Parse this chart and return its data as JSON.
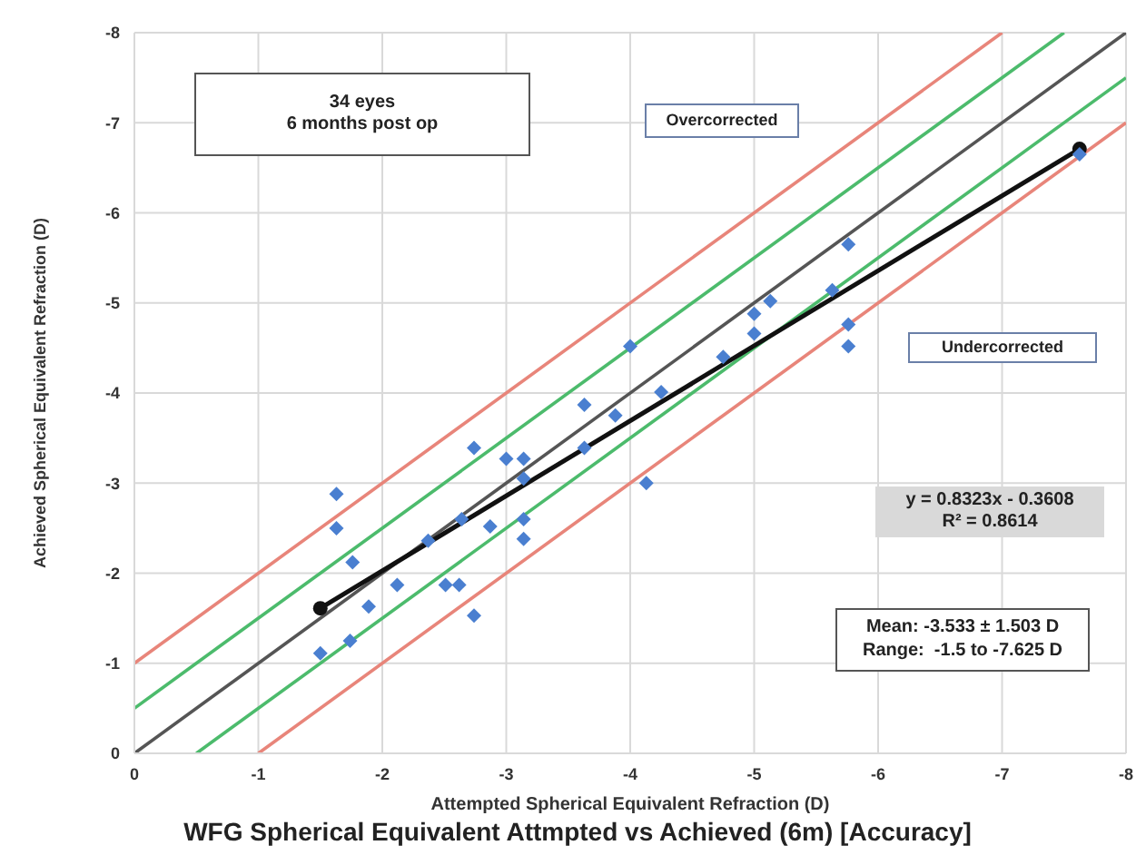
{
  "chart_data": {
    "type": "scatter",
    "title": "WFG Spherical Equivalent Attmpted vs Achieved (6m) [Accuracy]",
    "xlabel": "Attempted Spherical  Equivalent Refraction (D)",
    "ylabel": "Achieved Spherical Equivalent Refraction (D)",
    "xlim": [
      0,
      -8
    ],
    "ylim": [
      0,
      -8
    ],
    "xticks": [
      0,
      -1,
      -2,
      -3,
      -4,
      -5,
      -6,
      -7,
      -8
    ],
    "yticks": [
      0,
      -1,
      -2,
      -3,
      -4,
      -5,
      -6,
      -7,
      -8
    ],
    "grid": true,
    "annotations": [
      "34 eyes",
      "6 months post op",
      "Overcorrected",
      "Undercorrected",
      "y = 0.8323x - 0.3608",
      "R² = 0.8614",
      "Mean: -3.533 ± 1.503 D",
      "Range:  -1.5 to -7.625 D"
    ],
    "series": [
      {
        "type": "line",
        "color": "#e8857a",
        "marker": "none",
        "x": [
          0,
          -7
        ],
        "values": [
          -1,
          -8
        ]
      },
      {
        "type": "line",
        "color": "#4cbb6c",
        "marker": "none",
        "x": [
          0,
          -7.5
        ],
        "values": [
          -0.5,
          -8
        ]
      },
      {
        "type": "line",
        "color": "#555555",
        "marker": "none",
        "x": [
          0,
          -8
        ],
        "values": [
          0,
          -8
        ]
      },
      {
        "type": "line",
        "color": "#4cbb6c",
        "marker": "none",
        "x": [
          -0.5,
          -8
        ],
        "values": [
          0,
          -7.5
        ]
      },
      {
        "type": "line",
        "color": "#e8857a",
        "marker": "none",
        "x": [
          -1,
          -8
        ],
        "values": [
          0,
          -7
        ]
      },
      {
        "color": "#4a7fd0",
        "marker": "diamond",
        "x": [
          -1.5,
          -1.63,
          -1.63,
          -1.76,
          -1.74,
          -1.89,
          -2.12,
          -2.37,
          -2.51,
          -2.62,
          -2.74,
          -2.64,
          -2.74,
          -2.87,
          -3.0,
          -3.14,
          -3.14,
          -3.14,
          -3.14,
          -3.63,
          -3.63,
          -3.88,
          -4.0,
          -4.13,
          -4.25,
          -4.75,
          -5.0,
          -5.13,
          -5.0,
          -5.63,
          -5.76,
          -5.76,
          -5.76,
          -7.625
        ],
        "values": [
          -1.11,
          -2.88,
          -2.5,
          -2.12,
          -1.25,
          -1.63,
          -1.87,
          -2.36,
          -1.87,
          -1.87,
          -1.53,
          -2.6,
          -3.39,
          -2.52,
          -3.27,
          -3.27,
          -3.05,
          -2.6,
          -2.38,
          -3.87,
          -3.39,
          -3.75,
          -4.52,
          -3.0,
          -4.01,
          -4.4,
          -4.88,
          -5.02,
          -4.66,
          -5.14,
          -5.65,
          -4.76,
          -4.52,
          -6.65
        ]
      },
      {
        "type": "line",
        "color": "#111111",
        "marker": "circle",
        "x": [
          -1.5,
          -7.625
        ],
        "values": [
          -1.61,
          -6.71
        ]
      }
    ]
  }
}
